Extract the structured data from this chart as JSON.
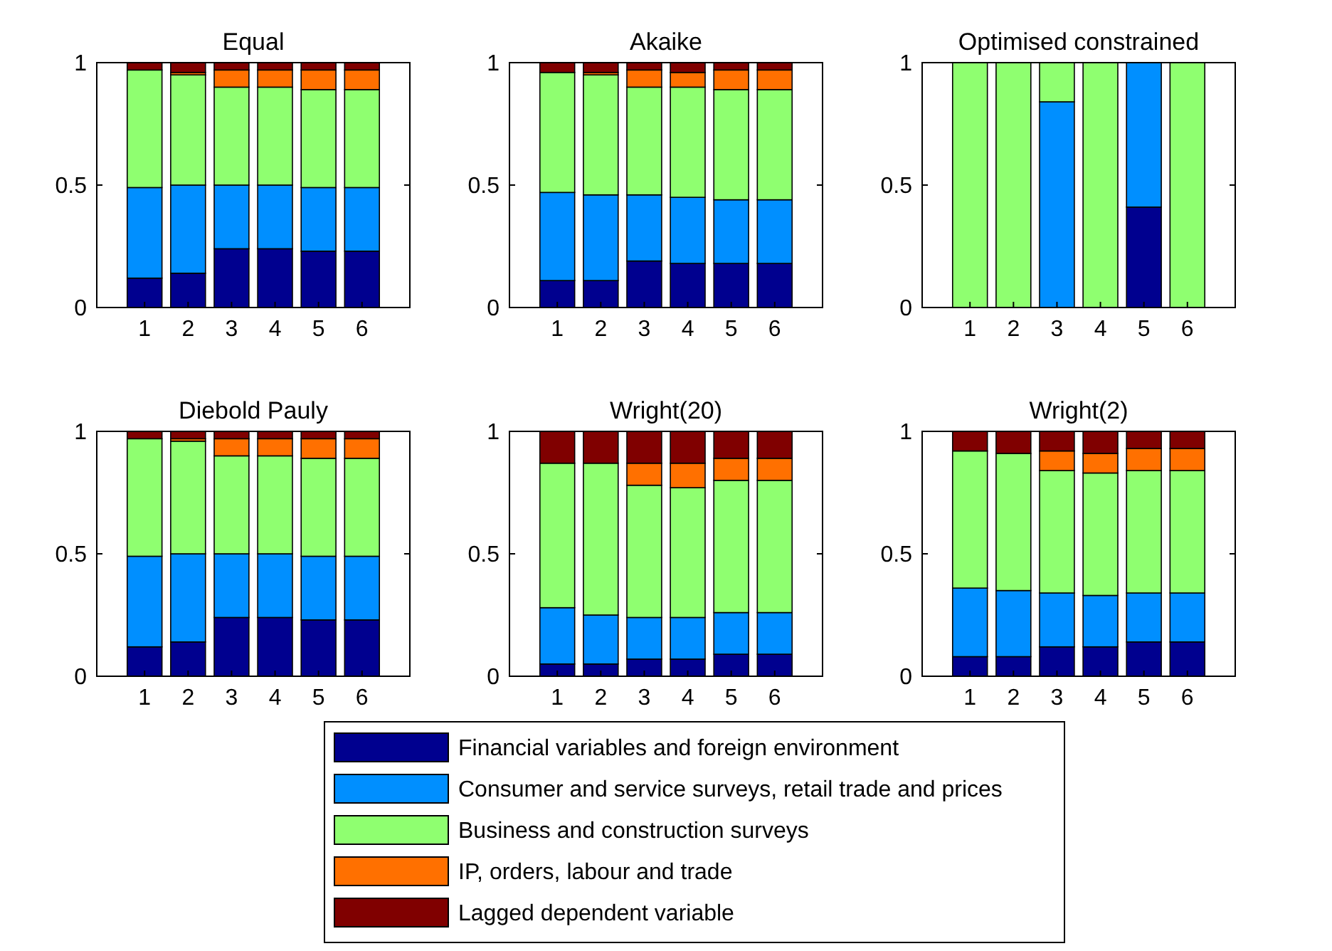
{
  "chart_data": [
    {
      "type": "bar",
      "title": "Equal",
      "stacked": true,
      "categories": [
        "1",
        "2",
        "3",
        "4",
        "5",
        "6"
      ],
      "ylim": [
        0,
        1
      ],
      "yticks": [
        0,
        0.5,
        1
      ],
      "legend": "bottom",
      "series": [
        {
          "name": "Financial variables and foreign environment",
          "color": "#00008f",
          "values": [
            0.12,
            0.14,
            0.24,
            0.24,
            0.23,
            0.23
          ]
        },
        {
          "name": "Consumer and service surveys, retail trade and prices",
          "color": "#008fff",
          "values": [
            0.37,
            0.36,
            0.26,
            0.26,
            0.26,
            0.26
          ]
        },
        {
          "name": "Business and construction surveys",
          "color": "#8fff70",
          "values": [
            0.48,
            0.45,
            0.4,
            0.4,
            0.4,
            0.4
          ]
        },
        {
          "name": "IP, orders, labour and trade",
          "color": "#ff7000",
          "values": [
            0,
            0.01,
            0.07,
            0.07,
            0.08,
            0.08
          ]
        },
        {
          "name": "Lagged dependent variable",
          "color": "#800000",
          "values": [
            0.03,
            0.04,
            0.03,
            0.03,
            0.03,
            0.03
          ]
        }
      ]
    },
    {
      "type": "bar",
      "title": "Akaike",
      "stacked": true,
      "categories": [
        "1",
        "2",
        "3",
        "4",
        "5",
        "6"
      ],
      "ylim": [
        0,
        1
      ],
      "yticks": [
        0,
        0.5,
        1
      ],
      "series": [
        {
          "color": "#00008f",
          "values": [
            0.11,
            0.11,
            0.19,
            0.18,
            0.18,
            0.18
          ]
        },
        {
          "color": "#008fff",
          "values": [
            0.36,
            0.35,
            0.27,
            0.27,
            0.26,
            0.26
          ]
        },
        {
          "color": "#8fff70",
          "values": [
            0.49,
            0.49,
            0.44,
            0.45,
            0.45,
            0.45
          ]
        },
        {
          "color": "#ff7000",
          "values": [
            0,
            0.01,
            0.07,
            0.06,
            0.08,
            0.08
          ]
        },
        {
          "color": "#800000",
          "values": [
            0.04,
            0.04,
            0.03,
            0.04,
            0.03,
            0.03
          ]
        }
      ]
    },
    {
      "type": "bar",
      "title": "Optimised constrained",
      "stacked": true,
      "categories": [
        "1",
        "2",
        "3",
        "4",
        "5",
        "6"
      ],
      "ylim": [
        0,
        1
      ],
      "yticks": [
        0,
        0.5,
        1
      ],
      "series": [
        {
          "color": "#00008f",
          "values": [
            0,
            0,
            0,
            0,
            0.41,
            0
          ]
        },
        {
          "color": "#008fff",
          "values": [
            0,
            0,
            0.84,
            0,
            0.59,
            0
          ]
        },
        {
          "color": "#8fff70",
          "values": [
            1,
            1,
            0.16,
            1,
            0,
            1
          ]
        },
        {
          "color": "#ff7000",
          "values": [
            0,
            0,
            0,
            0,
            0,
            0
          ]
        },
        {
          "color": "#800000",
          "values": [
            0,
            0,
            0,
            0,
            0,
            0
          ]
        }
      ]
    },
    {
      "type": "bar",
      "title": "Diebold Pauly",
      "stacked": true,
      "categories": [
        "1",
        "2",
        "3",
        "4",
        "5",
        "6"
      ],
      "ylim": [
        0,
        1
      ],
      "yticks": [
        0,
        0.5,
        1
      ],
      "series": [
        {
          "color": "#00008f",
          "values": [
            0.12,
            0.14,
            0.24,
            0.24,
            0.23,
            0.23
          ]
        },
        {
          "color": "#008fff",
          "values": [
            0.37,
            0.36,
            0.26,
            0.26,
            0.26,
            0.26
          ]
        },
        {
          "color": "#8fff70",
          "values": [
            0.48,
            0.46,
            0.4,
            0.4,
            0.4,
            0.4
          ]
        },
        {
          "color": "#ff7000",
          "values": [
            0,
            0.01,
            0.07,
            0.07,
            0.08,
            0.08
          ]
        },
        {
          "color": "#800000",
          "values": [
            0.03,
            0.03,
            0.03,
            0.03,
            0.03,
            0.03
          ]
        }
      ]
    },
    {
      "type": "bar",
      "title": "Wright(20)",
      "stacked": true,
      "categories": [
        "1",
        "2",
        "3",
        "4",
        "5",
        "6"
      ],
      "ylim": [
        0,
        1
      ],
      "yticks": [
        0,
        0.5,
        1
      ],
      "series": [
        {
          "color": "#00008f",
          "values": [
            0.05,
            0.05,
            0.07,
            0.07,
            0.09,
            0.09
          ]
        },
        {
          "color": "#008fff",
          "values": [
            0.23,
            0.2,
            0.17,
            0.17,
            0.17,
            0.17
          ]
        },
        {
          "color": "#8fff70",
          "values": [
            0.59,
            0.62,
            0.54,
            0.53,
            0.54,
            0.54
          ]
        },
        {
          "color": "#ff7000",
          "values": [
            0,
            0,
            0.09,
            0.1,
            0.09,
            0.09
          ]
        },
        {
          "color": "#800000",
          "values": [
            0.13,
            0.13,
            0.13,
            0.13,
            0.11,
            0.11
          ]
        }
      ]
    },
    {
      "type": "bar",
      "title": "Wright(2)",
      "stacked": true,
      "categories": [
        "1",
        "2",
        "3",
        "4",
        "5",
        "6"
      ],
      "ylim": [
        0,
        1
      ],
      "yticks": [
        0,
        0.5,
        1
      ],
      "series": [
        {
          "color": "#00008f",
          "values": [
            0.08,
            0.08,
            0.12,
            0.12,
            0.14,
            0.14
          ]
        },
        {
          "color": "#008fff",
          "values": [
            0.28,
            0.27,
            0.22,
            0.21,
            0.2,
            0.2
          ]
        },
        {
          "color": "#8fff70",
          "values": [
            0.56,
            0.56,
            0.5,
            0.5,
            0.5,
            0.5
          ]
        },
        {
          "color": "#ff7000",
          "values": [
            0,
            0,
            0.08,
            0.08,
            0.09,
            0.09
          ]
        },
        {
          "color": "#800000",
          "values": [
            0.08,
            0.09,
            0.08,
            0.09,
            0.07,
            0.07
          ]
        }
      ]
    }
  ]
}
